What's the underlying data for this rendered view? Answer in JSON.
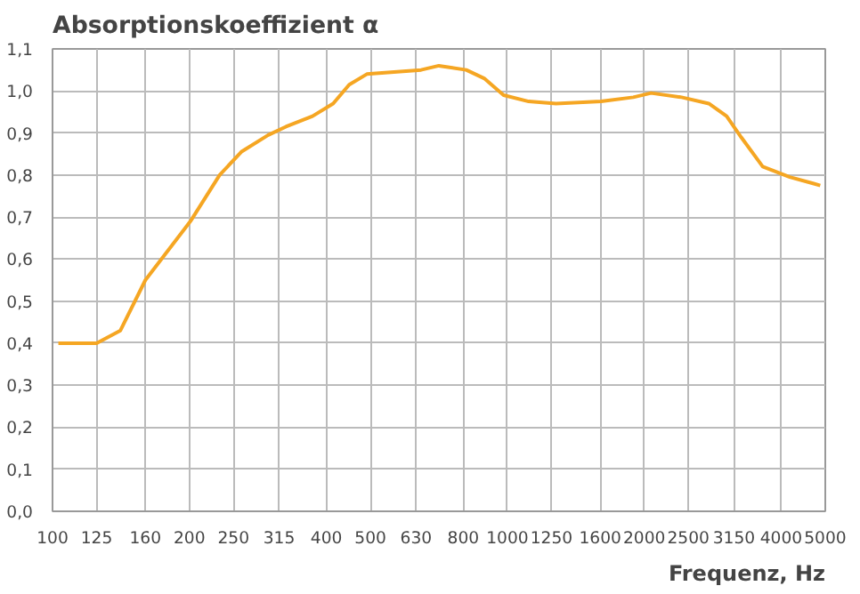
{
  "chart_data": {
    "type": "line",
    "title": "Absorptionskoeffizient α",
    "xlabel": "Frequenz, Hz",
    "log": "x",
    "grid": true,
    "marker": "none",
    "line_style": "solid",
    "xlim": [
      100,
      5000
    ],
    "xticks": [
      100,
      125,
      160,
      200,
      250,
      315,
      400,
      500,
      630,
      800,
      1000,
      1250,
      1600,
      2000,
      2500,
      3150,
      4000,
      5000
    ],
    "ylim": [
      0,
      1.1
    ],
    "yticks": [
      {
        "value": 0,
        "label": "0,0"
      },
      {
        "value": 0.1,
        "label": "0,1"
      },
      {
        "value": 0.2,
        "label": "0,2"
      },
      {
        "value": 0.3,
        "label": "0,3"
      },
      {
        "value": 0.4,
        "label": "0,4"
      },
      {
        "value": 0.5,
        "label": "0,5"
      },
      {
        "value": 0.6,
        "label": "0,6"
      },
      {
        "value": 0.7,
        "label": "0,7"
      },
      {
        "value": 0.8,
        "label": "0,8"
      },
      {
        "value": 0.9,
        "label": "0,9"
      },
      {
        "value": 1.0,
        "label": "1,0"
      },
      {
        "value": 1.1,
        "label": "1,1"
      }
    ],
    "series": [
      {
        "color": "#f5a623",
        "x": [
          103,
          125,
          141,
          160,
          201,
          233,
          260,
          298,
          326,
          373,
          414,
          449,
          491,
          646,
          707,
          812,
          889,
          981,
          1114,
          1279,
          1607,
          1892,
          2070,
          2415,
          2773,
          3034,
          3266,
          3643,
          4178,
          4699,
          4875
        ],
        "values": [
          0.4,
          0.4,
          0.43,
          0.55,
          0.69,
          0.8,
          0.855,
          0.895,
          0.915,
          0.94,
          0.97,
          1.015,
          1.04,
          1.05,
          1.06,
          1.05,
          1.03,
          0.99,
          0.975,
          0.97,
          0.975,
          0.985,
          0.995,
          0.985,
          0.97,
          0.94,
          0.89,
          0.82,
          0.795,
          0.78,
          0.775
        ]
      }
    ]
  }
}
